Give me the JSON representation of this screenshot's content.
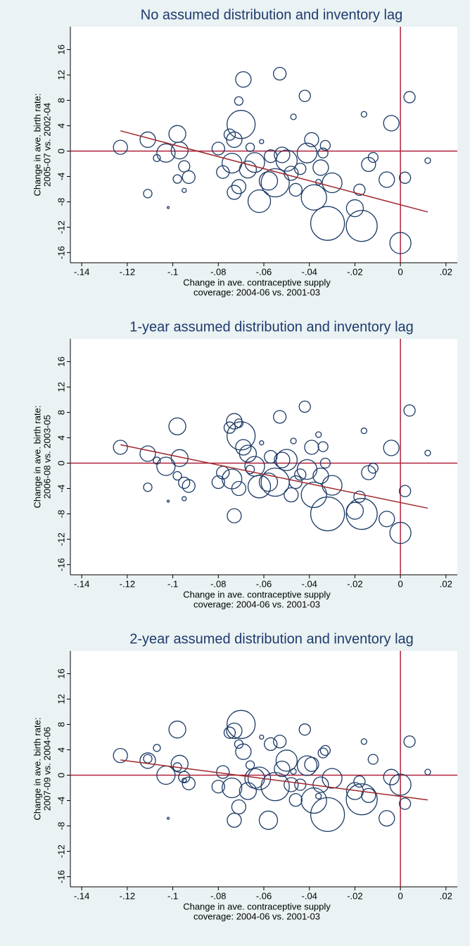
{
  "chart_data": [
    {
      "type": "scatter",
      "title": "No assumed distribution and inventory lag",
      "xlabel": [
        "Change in ave. contraceptive supply",
        "coverage: 2004-06 vs. 2001-03"
      ],
      "ylabel": [
        "Change in ave. birth rate:",
        "2005-07 vs. 2002-04"
      ],
      "xlim": [
        -0.145,
        0.025
      ],
      "ylim": [
        -17.6,
        19.6
      ],
      "xticks": [
        {
          "value": -0.14,
          "label": "-.14"
        },
        {
          "value": -0.12,
          "label": "-.12"
        },
        {
          "value": -0.1,
          "label": "-.1"
        },
        {
          "value": -0.08,
          "label": "-.08"
        },
        {
          "value": -0.06,
          "label": "-.06"
        },
        {
          "value": -0.04,
          "label": "-.04"
        },
        {
          "value": -0.02,
          "label": "-.02"
        },
        0,
        {
          "value": 0.02,
          "label": ".02"
        }
      ],
      "yticks": [
        16,
        12,
        8,
        4,
        0,
        -4,
        -8,
        -12,
        -16
      ],
      "color": "#1c3a66",
      "hline": 0,
      "vline": 0,
      "refcolor": "#b0203a",
      "fit": {
        "x": [
          -0.123,
          0.012
        ],
        "y": [
          3.2,
          -9.6
        ],
        "color": "#a0282c"
      },
      "x": [
        -0.123,
        -0.111,
        -0.111,
        -0.107,
        -0.103,
        -0.102,
        -0.098,
        -0.097,
        -0.098,
        -0.095,
        -0.095,
        -0.093,
        -0.08,
        -0.078,
        -0.075,
        -0.074,
        -0.073,
        -0.073,
        -0.071,
        -0.071,
        -0.07,
        -0.069,
        -0.067,
        -0.066,
        -0.064,
        -0.062,
        -0.061,
        -0.058,
        -0.057,
        -0.055,
        -0.053,
        -0.052,
        -0.05,
        -0.048,
        -0.047,
        -0.046,
        -0.044,
        -0.042,
        -0.041,
        -0.039,
        -0.038,
        -0.036,
        -0.035,
        -0.034,
        -0.033,
        -0.032,
        -0.03,
        -0.02,
        -0.018,
        -0.017,
        -0.016,
        -0.014,
        -0.012,
        -0.006,
        -0.004,
        0.0,
        0.002,
        0.004,
        0.012
      ],
      "y": [
        0.6,
        1.8,
        -6.7,
        -1.1,
        -0.3,
        -8.9,
        2.7,
        0.1,
        -4.4,
        -2.4,
        -6.2,
        -4.1,
        0.4,
        -3.3,
        2.6,
        -1.9,
        1.8,
        -6.5,
        7.9,
        -5.6,
        4.2,
        11.3,
        -2.9,
        0.6,
        -1.8,
        -7.9,
        1.5,
        -4.7,
        -0.8,
        -5.0,
        12.2,
        -0.6,
        -1.5,
        -3.5,
        5.4,
        -6.1,
        -2.8,
        8.7,
        -0.3,
        1.8,
        -7.3,
        -4.9,
        -2.6,
        -0.3,
        0.9,
        -11.4,
        -5.0,
        -9.0,
        -6.1,
        -11.8,
        5.8,
        -2.1,
        -1.0,
        -4.5,
        4.4,
        -14.5,
        -4.2,
        8.5,
        -1.5
      ],
      "sizes": [
        10,
        11,
        6,
        5,
        13,
        1.5,
        12,
        12,
        6,
        8,
        3,
        9,
        9,
        9,
        8,
        14,
        11,
        10,
        6,
        10,
        20,
        11,
        12,
        6,
        14,
        16,
        3,
        13,
        9,
        20,
        9,
        11,
        15,
        10,
        4,
        9,
        8,
        8,
        14,
        10,
        18,
        4,
        11,
        7,
        7,
        24,
        14,
        12,
        8,
        22,
        4,
        10,
        7,
        11,
        11,
        15,
        8,
        8,
        4
      ]
    },
    {
      "type": "scatter",
      "title": "1-year assumed distribution and inventory lag",
      "xlabel": [
        "Change in ave. contraceptive supply",
        "coverage: 2004-06 vs. 2001-03"
      ],
      "ylabel": [
        "Change in ave. birth rate:",
        "2006-08 vs. 2003-05"
      ],
      "xlim": [
        -0.145,
        0.025
      ],
      "ylim": [
        -17.6,
        19.6
      ],
      "xticks": [
        {
          "value": -0.14,
          "label": "-.14"
        },
        {
          "value": -0.12,
          "label": "-.12"
        },
        {
          "value": -0.1,
          "label": "-.1"
        },
        {
          "value": -0.08,
          "label": "-.08"
        },
        {
          "value": -0.06,
          "label": "-.06"
        },
        {
          "value": -0.04,
          "label": "-.04"
        },
        {
          "value": -0.02,
          "label": "-.02"
        },
        0,
        {
          "value": 0.02,
          "label": ".02"
        }
      ],
      "yticks": [
        16,
        12,
        8,
        4,
        0,
        -4,
        -8,
        -12,
        -16
      ],
      "color": "#1c3a66",
      "hline": 0,
      "vline": 0,
      "refcolor": "#b0203a",
      "fit": {
        "x": [
          -0.123,
          0.012
        ],
        "y": [
          2.9,
          -7.1
        ],
        "color": "#a0282c"
      },
      "x": [
        -0.123,
        -0.111,
        -0.111,
        -0.107,
        -0.103,
        -0.102,
        -0.098,
        -0.097,
        -0.098,
        -0.095,
        -0.095,
        -0.093,
        -0.08,
        -0.078,
        -0.075,
        -0.074,
        -0.073,
        -0.073,
        -0.071,
        -0.071,
        -0.07,
        -0.069,
        -0.067,
        -0.066,
        -0.064,
        -0.062,
        -0.061,
        -0.058,
        -0.057,
        -0.055,
        -0.053,
        -0.052,
        -0.05,
        -0.048,
        -0.047,
        -0.046,
        -0.044,
        -0.042,
        -0.041,
        -0.039,
        -0.038,
        -0.036,
        -0.035,
        -0.034,
        -0.033,
        -0.032,
        -0.03,
        -0.02,
        -0.018,
        -0.017,
        -0.016,
        -0.014,
        -0.012,
        -0.006,
        -0.004,
        0.0,
        0.002,
        0.004,
        0.012
      ],
      "y": [
        2.5,
        1.5,
        -3.8,
        0.4,
        -0.5,
        -6.0,
        5.8,
        0.8,
        -2.0,
        -3.1,
        -5.6,
        -3.6,
        -3.0,
        -1.5,
        5.6,
        -2.5,
        6.6,
        -8.3,
        6.3,
        -4.0,
        4.3,
        2.5,
        1.5,
        -1.0,
        -0.5,
        -3.7,
        3.2,
        -3.0,
        1.0,
        -3.0,
        7.3,
        0.5,
        0.5,
        -5.0,
        3.5,
        -3.0,
        -1.8,
        8.9,
        -1.0,
        2.5,
        -5.0,
        4.5,
        -2.0,
        2.6,
        0,
        -8.0,
        -3.5,
        -7.5,
        -5.3,
        -8.0,
        5.1,
        -1.5,
        -0.8,
        -8.8,
        2.4,
        -11.0,
        -4.4,
        8.3,
        1.6
      ],
      "sizes": [
        10,
        11,
        6,
        5,
        13,
        1.5,
        12,
        12,
        6,
        8,
        3,
        9,
        9,
        9,
        8,
        14,
        11,
        10,
        6,
        10,
        20,
        11,
        12,
        6,
        14,
        16,
        3,
        13,
        9,
        20,
        9,
        11,
        15,
        10,
        4,
        9,
        8,
        8,
        14,
        10,
        18,
        4,
        11,
        7,
        7,
        24,
        14,
        12,
        8,
        22,
        4,
        10,
        7,
        11,
        11,
        15,
        8,
        8,
        4
      ]
    },
    {
      "type": "scatter",
      "title": "2-year assumed distribution and inventory lag",
      "xlabel": [
        "Change in ave. contraceptive supply",
        "coverage: 2004-06 vs. 2001-03"
      ],
      "ylabel": [
        "Change in ave. birth rate:",
        "2007-09 vs. 2004-06"
      ],
      "xlim": [
        -0.145,
        0.025
      ],
      "ylim": [
        -17.6,
        19.6
      ],
      "xticks": [
        {
          "value": -0.14,
          "label": "-.14"
        },
        {
          "value": -0.12,
          "label": "-.12"
        },
        {
          "value": -0.1,
          "label": "-.1"
        },
        {
          "value": -0.08,
          "label": "-.08"
        },
        {
          "value": -0.06,
          "label": "-.06"
        },
        {
          "value": -0.04,
          "label": "-.04"
        },
        {
          "value": -0.02,
          "label": "-.02"
        },
        0,
        {
          "value": 0.02,
          "label": ".02"
        }
      ],
      "yticks": [
        16,
        12,
        8,
        4,
        0,
        -4,
        -8,
        -12,
        -16
      ],
      "color": "#1c3a66",
      "hline": 0,
      "vline": 0,
      "refcolor": "#b0203a",
      "fit": {
        "x": [
          -0.123,
          0.012
        ],
        "y": [
          2.4,
          -3.9
        ],
        "color": "#a0282c"
      },
      "x": [
        -0.123,
        -0.111,
        -0.111,
        -0.107,
        -0.103,
        -0.102,
        -0.098,
        -0.097,
        -0.098,
        -0.095,
        -0.095,
        -0.093,
        -0.08,
        -0.078,
        -0.075,
        -0.074,
        -0.073,
        -0.073,
        -0.071,
        -0.071,
        -0.07,
        -0.069,
        -0.067,
        -0.066,
        -0.064,
        -0.062,
        -0.061,
        -0.058,
        -0.057,
        -0.055,
        -0.053,
        -0.052,
        -0.05,
        -0.048,
        -0.047,
        -0.046,
        -0.044,
        -0.042,
        -0.041,
        -0.039,
        -0.038,
        -0.036,
        -0.035,
        -0.034,
        -0.033,
        -0.032,
        -0.03,
        -0.02,
        -0.018,
        -0.017,
        -0.016,
        -0.014,
        -0.012,
        -0.006,
        -0.004,
        0.0,
        0.002,
        0.004,
        0.012
      ],
      "y": [
        3.1,
        2.3,
        2.6,
        4.3,
        0.0,
        -6.8,
        7.2,
        1.8,
        1.3,
        -0.3,
        -0.8,
        -1.3,
        -1.8,
        0.5,
        6.7,
        -2.0,
        7.0,
        -7.1,
        4.9,
        -5.0,
        8.0,
        3.7,
        -2.5,
        1.6,
        -0.5,
        -0.5,
        6.0,
        -7.1,
        4.9,
        -1.8,
        5.3,
        1.0,
        2.3,
        -1.5,
        0.6,
        -3.9,
        -1.5,
        7.2,
        1.5,
        1.7,
        -4.0,
        -3.3,
        -1.5,
        3.5,
        3.9,
        -6.2,
        -0.5,
        -2.5,
        -1.0,
        -3.8,
        5.3,
        -3.2,
        2.5,
        -6.8,
        -0.3,
        -1.5,
        -4.5,
        5.3,
        0.5
      ],
      "sizes": [
        10,
        11,
        6,
        5,
        13,
        1.5,
        12,
        12,
        6,
        8,
        3,
        9,
        9,
        9,
        8,
        14,
        11,
        10,
        6,
        10,
        20,
        11,
        12,
        6,
        14,
        16,
        3,
        13,
        9,
        20,
        9,
        11,
        15,
        10,
        4,
        9,
        8,
        8,
        14,
        10,
        18,
        4,
        11,
        7,
        7,
        24,
        14,
        12,
        8,
        22,
        4,
        10,
        7,
        11,
        11,
        15,
        8,
        8,
        4
      ]
    }
  ]
}
